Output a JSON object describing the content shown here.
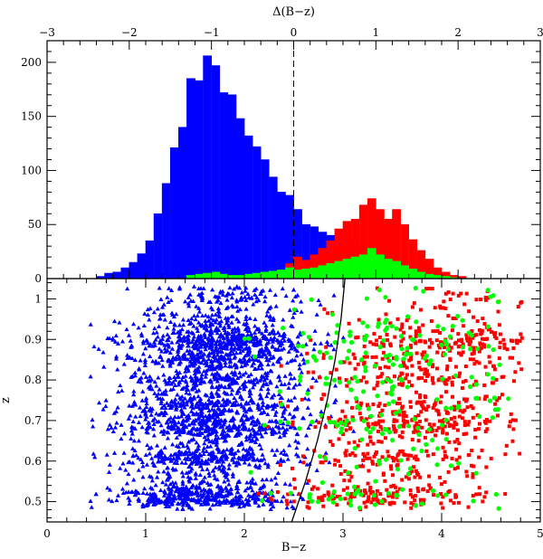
{
  "chart_data": [
    {
      "type": "bar",
      "panel": "top histogram",
      "xlabel_top": "Δ(B−z)",
      "xlim_top": [
        -3,
        3
      ],
      "xticks_top": [
        "−3",
        "−2",
        "−1",
        "0",
        "1",
        "2",
        "3"
      ],
      "ylim": [
        0,
        220
      ],
      "yticks": [
        "0",
        "50",
        "100",
        "150",
        "200"
      ],
      "reference_line": {
        "x": 0,
        "style": "dashed"
      },
      "bin_start": -2.4,
      "bin_width": 0.1,
      "series": [
        {
          "color": "#0000ff",
          "values": [
            2,
            5,
            6,
            10,
            15,
            23,
            35,
            60,
            88,
            121,
            140,
            185,
            183,
            206,
            197,
            172,
            170,
            148,
            132,
            122,
            110,
            94,
            80,
            77,
            64,
            50,
            48,
            43,
            40,
            38,
            34,
            32,
            30,
            24,
            18,
            12,
            8,
            5,
            3,
            2,
            1
          ]
        },
        {
          "color": "#ff0000",
          "values": [
            0,
            0,
            0,
            0,
            0,
            0,
            0,
            0,
            0,
            0,
            0,
            0,
            0,
            0,
            0,
            0,
            0,
            0,
            0,
            0,
            0,
            3,
            8,
            14,
            20,
            17,
            22,
            28,
            35,
            46,
            53,
            55,
            68,
            74,
            64,
            55,
            64,
            50,
            36,
            26,
            18,
            10,
            6,
            3,
            2
          ]
        },
        {
          "color": "#00ff00",
          "values": [
            0,
            0,
            0,
            0,
            0,
            0,
            0,
            0,
            0,
            0,
            0,
            3,
            4,
            5,
            6,
            4,
            3,
            3,
            4,
            5,
            6,
            7,
            8,
            10,
            8,
            9,
            10,
            12,
            14,
            16,
            18,
            20,
            22,
            28,
            22,
            18,
            16,
            12,
            9,
            6,
            4,
            3,
            2,
            1,
            0
          ]
        }
      ]
    },
    {
      "type": "scatter",
      "panel": "bottom scatter",
      "xlabel": "B−z",
      "ylabel": "z",
      "xlim": [
        0,
        5
      ],
      "ylim": [
        0.45,
        1.05
      ],
      "xticks": [
        "0",
        "1",
        "2",
        "3",
        "4",
        "5"
      ],
      "yticks": [
        "0.5",
        "0.6",
        "0.7",
        "0.8",
        "0.9",
        "1"
      ],
      "series": [
        {
          "marker": "triangle",
          "color": "#0000ff",
          "count": 2600,
          "x_center": 1.65,
          "x_spread": 0.45,
          "x_min": 0.4,
          "x_max": 3.3
        },
        {
          "marker": "square",
          "color": "#ff0000",
          "count": 900,
          "x_center": 3.7,
          "x_spread": 0.55,
          "x_min": 2.1,
          "x_max": 4.85
        },
        {
          "marker": "circle",
          "color": "#00ff00",
          "count": 260,
          "x_center": 3.4,
          "x_spread": 0.6,
          "x_min": 1.1,
          "x_max": 4.8
        }
      ],
      "density_peaks_z": [
        0.5,
        0.52,
        0.61,
        0.68,
        0.7,
        0.74,
        0.8,
        0.85,
        0.88,
        0.9
      ],
      "curve": {
        "style": "solid black",
        "points": [
          [
            2.48,
            0.45
          ],
          [
            2.62,
            0.55
          ],
          [
            2.74,
            0.65
          ],
          [
            2.84,
            0.75
          ],
          [
            2.92,
            0.85
          ],
          [
            2.98,
            0.95
          ],
          [
            3.02,
            1.05
          ]
        ]
      }
    }
  ]
}
